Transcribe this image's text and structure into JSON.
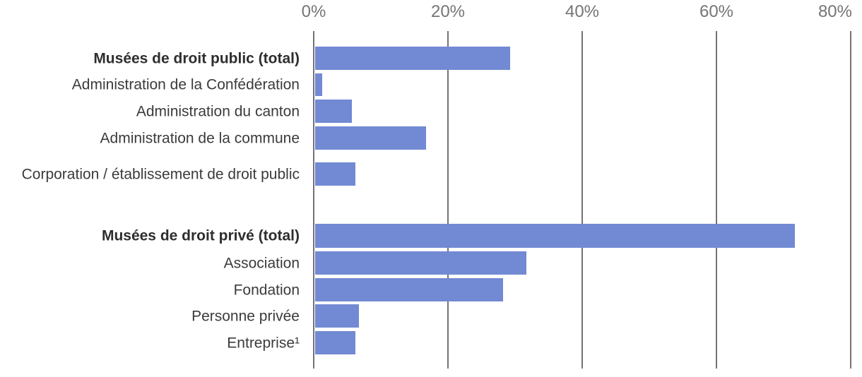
{
  "chart_data": {
    "type": "bar",
    "orientation": "horizontal",
    "title": "",
    "xlabel": "",
    "ylabel": "",
    "xlim": [
      0,
      80
    ],
    "x_tick_labels": [
      "0%",
      "20%",
      "40%",
      "60%",
      "80%"
    ],
    "x_tick_values": [
      0,
      20,
      40,
      60,
      80
    ],
    "grid": true,
    "legend": "none",
    "axis_position": "top",
    "categories": [
      "Musées de droit public (total)",
      "Administration de la Confédération",
      "Administration du canton",
      "Administration de la commune",
      "Corporation / établissement de droit public",
      "Musées de droit privé (total)",
      "Association",
      "Fondation",
      "Personne privée",
      "Entreprise¹"
    ],
    "rows": [
      {
        "label": "Musées de droit public (total)",
        "value": 29,
        "bold": true,
        "gap_before": false
      },
      {
        "label": "Administration de la Confédération",
        "value": 1,
        "bold": false,
        "gap_before": false
      },
      {
        "label": "Administration du canton",
        "value": 5.5,
        "bold": false,
        "gap_before": false
      },
      {
        "label": "Administration de la commune",
        "value": 16.5,
        "bold": false,
        "gap_before": false
      },
      {
        "label": "Corporation / établissement de droit public",
        "value": 6,
        "bold": false,
        "gap_before": false
      },
      {
        "label": "Musées de droit privé (total)",
        "value": 71.5,
        "bold": true,
        "gap_before": true
      },
      {
        "label": "Association",
        "value": 31.5,
        "bold": false,
        "gap_before": false
      },
      {
        "label": "Fondation",
        "value": 28,
        "bold": false,
        "gap_before": false
      },
      {
        "label": "Personne privée",
        "value": 6.5,
        "bold": false,
        "gap_before": false
      },
      {
        "label": "Entreprise¹",
        "value": 6,
        "bold": false,
        "gap_before": false
      }
    ],
    "colors": {
      "bar": "#7289d4",
      "gridline": "#737373",
      "tick_label": "#757575",
      "category_label": "#3b3b3b",
      "category_label_bold": "#2e2e2e",
      "background": "#ffffff"
    }
  }
}
